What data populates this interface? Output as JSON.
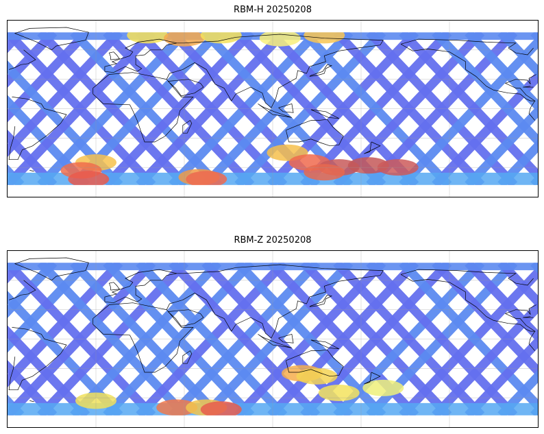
{
  "panels": [
    {
      "title": "RBM-H 20250208",
      "swath_palette": [
        "#6470ee",
        "#5c8af0",
        "#56a8f2",
        "#4fc3f7",
        "#5ee8e8"
      ],
      "hotspots": [
        {
          "lon": 20,
          "lat": 75,
          "color": "#f6e25a"
        },
        {
          "lon": 45,
          "lat": 72,
          "color": "#f4a94d"
        },
        {
          "lon": 70,
          "lat": 75,
          "color": "#f6e25a"
        },
        {
          "lon": 110,
          "lat": 72,
          "color": "#f9f07a"
        },
        {
          "lon": 140,
          "lat": 75,
          "color": "#f8c653"
        },
        {
          "lon": -15,
          "lat": -55,
          "color": "#f7c24d"
        },
        {
          "lon": -25,
          "lat": -63,
          "color": "#f06d4c"
        },
        {
          "lon": -20,
          "lat": -72,
          "color": "#ea5b4c"
        },
        {
          "lon": 55,
          "lat": -70,
          "color": "#f09a48"
        },
        {
          "lon": 60,
          "lat": -72,
          "color": "#ef6a50"
        },
        {
          "lon": 115,
          "lat": -45,
          "color": "#f6c04c"
        },
        {
          "lon": 130,
          "lat": -55,
          "color": "#f06a4e"
        },
        {
          "lon": 150,
          "lat": -60,
          "color": "#c85a5a"
        },
        {
          "lon": 170,
          "lat": -58,
          "color": "#c45858"
        },
        {
          "lon": 190,
          "lat": -60,
          "color": "#cc5b5b"
        },
        {
          "lon": 140,
          "lat": -65,
          "color": "#e8684f"
        }
      ]
    },
    {
      "title": "RBM-Z 20250208",
      "swath_palette": [
        "#6470ee",
        "#5c8af0",
        "#56a8f2",
        "#4fc3f7",
        "#5ee8e8"
      ],
      "hotspots": [
        {
          "lon": -15,
          "lat": -63,
          "color": "#f0e15c"
        },
        {
          "lon": 40,
          "lat": -70,
          "color": "#f07a4c"
        },
        {
          "lon": 60,
          "lat": -70,
          "color": "#f1c44e"
        },
        {
          "lon": 70,
          "lat": -72,
          "color": "#e85c4e"
        },
        {
          "lon": 125,
          "lat": -35,
          "color": "#f6ad4c"
        },
        {
          "lon": 135,
          "lat": -38,
          "color": "#f4d355"
        },
        {
          "lon": 150,
          "lat": -55,
          "color": "#f3e35e"
        },
        {
          "lon": 180,
          "lat": -50,
          "color": "#eef07a"
        }
      ]
    }
  ]
}
